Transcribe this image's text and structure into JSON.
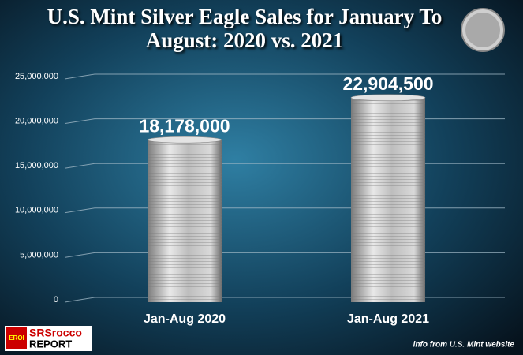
{
  "chart_data": {
    "type": "bar",
    "title": "U.S. Mint Silver Eagle Sales for January To August:  2020 vs. 2021",
    "categories": [
      "Jan-Aug 2020",
      "Jan-Aug 2021"
    ],
    "values": [
      18178000,
      22904500
    ],
    "value_labels": [
      "18,178,000",
      "22,904,500"
    ],
    "color": "#c8c8c8",
    "ylim": [
      0,
      25000000
    ],
    "yticks": [
      0,
      {
        "value": 5000000,
        "label": "5,000,000"
      },
      {
        "value": 10000000,
        "label": "10,000,000"
      },
      {
        "value": 15000000,
        "label": "15,000,000"
      },
      {
        "value": 20000000,
        "label": "20,000,000"
      },
      {
        "value": 25000000,
        "label": "25,000,000"
      }
    ],
    "grid": true,
    "source": "info from U.S. Mint website",
    "logo": {
      "badge": "EROI",
      "name": "SRSrocco",
      "sub": "REPORT"
    }
  }
}
